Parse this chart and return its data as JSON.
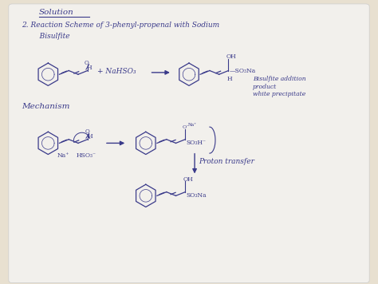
{
  "bg_color": "#e8e0d0",
  "paper_color": "#f2f0ec",
  "ink_color": "#3a3a8a",
  "title": "Solution",
  "heading": "2. Reaction Scheme of 3-phenyl-propenal with Sodium",
  "heading2": "   Bisulfite",
  "bisulfite_note1": "Bisulfite addition",
  "bisulfite_note2": "product",
  "bisulfite_note3": "white precipitate",
  "mechanism_label": "Mechanism",
  "proton_transfer": "Proton transfer",
  "nahso3": "+ NaHSO₃",
  "reagents": "Na⁺   HSO₃⁻"
}
